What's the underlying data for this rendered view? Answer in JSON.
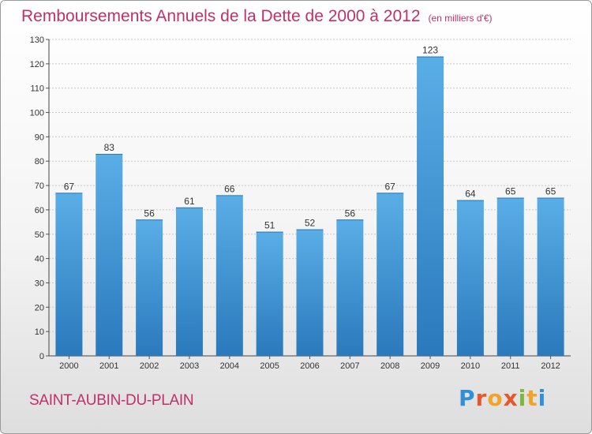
{
  "header": {
    "title": "Remboursements Annuels de la Dette de 2000 à 2012",
    "subtitle": "(en milliers d'€)"
  },
  "footer": {
    "town": "SAINT-AUBIN-DU-PLAIN",
    "logo_letters": [
      "P",
      "r",
      "o",
      "x",
      "i",
      "t",
      "i"
    ]
  },
  "colors": {
    "accent": "#c0306a",
    "bar_top": "#5aaee6",
    "bar_bottom": "#2a79bc"
  },
  "chart_data": {
    "type": "bar",
    "title": "Remboursements Annuels de la Dette de 2000 à 2012",
    "subtitle": "(en milliers d'€)",
    "categories": [
      "2000",
      "2001",
      "2002",
      "2003",
      "2004",
      "2005",
      "2006",
      "2007",
      "2008",
      "2009",
      "2010",
      "2011",
      "2012"
    ],
    "values": [
      67,
      83,
      56,
      61,
      66,
      51,
      52,
      56,
      67,
      123,
      64,
      65,
      65
    ],
    "ylim": [
      0,
      130
    ],
    "yticks": [
      0,
      10,
      20,
      30,
      40,
      50,
      60,
      70,
      80,
      90,
      100,
      110,
      120,
      130
    ],
    "grid": true,
    "legend": "none"
  }
}
